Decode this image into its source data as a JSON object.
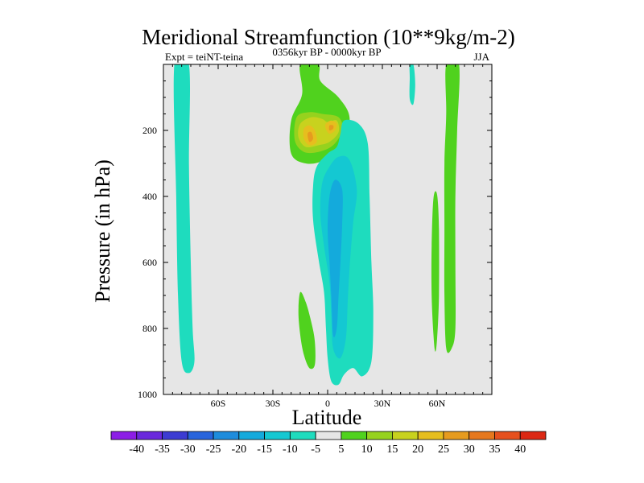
{
  "chart_data": {
    "type": "contour",
    "title": "Meridional Streamfunction (10**9kg/m-2)",
    "subtitle": "0356kyr BP - 0000kyr BP",
    "left_label": "Expt = teiNT-teina",
    "right_label": "JJA",
    "xlabel": "Latitude",
    "ylabel": "Pressure (in hPa)",
    "xlim": [
      -90,
      90
    ],
    "ylim": [
      1000,
      0
    ],
    "x_ticks": [
      {
        "value": -60,
        "label": "60S"
      },
      {
        "value": -30,
        "label": "30S"
      },
      {
        "value": 0,
        "label": "0"
      },
      {
        "value": 30,
        "label": "30N"
      },
      {
        "value": 60,
        "label": "60N"
      }
    ],
    "y_ticks": [
      {
        "value": 200,
        "label": "200"
      },
      {
        "value": 400,
        "label": "400"
      },
      {
        "value": 600,
        "label": "600"
      },
      {
        "value": 800,
        "label": "800"
      },
      {
        "value": 1000,
        "label": "1000"
      }
    ],
    "background_color": "#e6e6e6",
    "colorbar": {
      "boundaries": [
        "-40",
        "-35",
        "-30",
        "-25",
        "-20",
        "-15",
        "-10",
        "-5",
        "5",
        "10",
        "15",
        "20",
        "25",
        "30",
        "35",
        "40"
      ],
      "colors": [
        "#8c1ee6",
        "#6a28dc",
        "#3c3cd2",
        "#2864dc",
        "#1e8cdc",
        "#14aadc",
        "#14c8d2",
        "#1edcbe",
        "#e6e6e6",
        "#50d21e",
        "#96d21e",
        "#c8d21e",
        "#e6be1e",
        "#e69b1e",
        "#e6781e",
        "#e6501e",
        "#dc2814"
      ]
    },
    "contour_regions": [
      {
        "level": "-10 to -5",
        "color": "#1edcbe",
        "outline_latlev": [
          [
            -84,
            0
          ],
          [
            -76,
            0
          ],
          [
            -76,
            300
          ],
          [
            -75,
            600
          ],
          [
            -74,
            800
          ],
          [
            -73,
            900
          ],
          [
            -76,
            935
          ],
          [
            -80,
            900
          ],
          [
            -82,
            700
          ],
          [
            -83,
            400
          ]
        ]
      },
      {
        "level": "5 to 10",
        "color": "#50d21e",
        "outline_latlev": [
          [
            -15,
            0
          ],
          [
            -5,
            0
          ],
          [
            -4,
            50
          ],
          [
            6,
            100
          ],
          [
            12,
            160
          ],
          [
            9,
            240
          ],
          [
            -2,
            290
          ],
          [
            -12,
            300
          ],
          [
            -20,
            270
          ],
          [
            -20,
            170
          ],
          [
            -14,
            90
          ]
        ]
      },
      {
        "level": "10 to 15",
        "color": "#96d21e",
        "outline_latlev": [
          [
            -17,
            160
          ],
          [
            -10,
            145
          ],
          [
            -3,
            150
          ],
          [
            6,
            160
          ],
          [
            8,
            200
          ],
          [
            3,
            245
          ],
          [
            -5,
            265
          ],
          [
            -13,
            265
          ],
          [
            -18,
            230
          ]
        ]
      },
      {
        "level": "15 to 20",
        "color": "#c8d21e",
        "outline_latlev": [
          [
            -15,
            180
          ],
          [
            -9,
            160
          ],
          [
            -3,
            165
          ],
          [
            0,
            175
          ],
          [
            5,
            170
          ],
          [
            6,
            205
          ],
          [
            1,
            235
          ],
          [
            -5,
            245
          ],
          [
            -12,
            250
          ],
          [
            -16,
            220
          ]
        ]
      },
      {
        "level": "20 to 25",
        "color": "#e6be1e",
        "outline_latlev": [
          [
            -13,
            195
          ],
          [
            -10,
            185
          ],
          [
            -7,
            200
          ],
          [
            -6,
            235
          ],
          [
            -10,
            245
          ],
          [
            -13,
            225
          ]
        ]
      },
      {
        "level": "20 to 25",
        "color": "#e6be1e",
        "outline_latlev": [
          [
            -1,
            180
          ],
          [
            2,
            170
          ],
          [
            5,
            180
          ],
          [
            4,
            200
          ],
          [
            1,
            210
          ],
          [
            -1,
            195
          ]
        ]
      },
      {
        "level": "25 to 30",
        "color": "#e69b1e",
        "outline_latlev": [
          [
            -11,
            210
          ],
          [
            -9,
            205
          ],
          [
            -8,
            225
          ],
          [
            -10,
            235
          ]
        ]
      },
      {
        "level": "25 to 30",
        "color": "#e69b1e",
        "outline_latlev": [
          [
            1,
            185
          ],
          [
            3,
            185
          ],
          [
            3,
            195
          ],
          [
            1,
            200
          ]
        ]
      },
      {
        "level": "-10 to -5",
        "color": "#1edcbe",
        "outline_latlev": [
          [
            9,
            170
          ],
          [
            17,
            180
          ],
          [
            22,
            240
          ],
          [
            23,
            400
          ],
          [
            24,
            600
          ],
          [
            25,
            750
          ],
          [
            24,
            900
          ],
          [
            19,
            945
          ],
          [
            14,
            920
          ],
          [
            9,
            940
          ],
          [
            6,
            970
          ],
          [
            2,
            960
          ],
          [
            0,
            890
          ],
          [
            -1,
            790
          ],
          [
            -2,
            690
          ],
          [
            -5,
            590
          ],
          [
            -8,
            470
          ],
          [
            -8,
            370
          ],
          [
            -6,
            310
          ],
          [
            0,
            270
          ],
          [
            5,
            250
          ],
          [
            7,
            210
          ]
        ]
      },
      {
        "level": "-15 to -10",
        "color": "#14c8d2",
        "outline_latlev": [
          [
            6,
            280
          ],
          [
            12,
            290
          ],
          [
            16,
            380
          ],
          [
            14,
            480
          ],
          [
            12,
            620
          ],
          [
            11,
            720
          ],
          [
            10,
            830
          ],
          [
            7,
            890
          ],
          [
            3,
            860
          ],
          [
            2,
            760
          ],
          [
            1,
            660
          ],
          [
            -2,
            550
          ],
          [
            -4,
            450
          ],
          [
            -3,
            360
          ],
          [
            1,
            310
          ]
        ]
      },
      {
        "level": "-20 to -15",
        "color": "#14aadc",
        "outline_latlev": [
          [
            4,
            350
          ],
          [
            8,
            380
          ],
          [
            8,
            480
          ],
          [
            7,
            600
          ],
          [
            6,
            700
          ],
          [
            5,
            800
          ],
          [
            3,
            820
          ],
          [
            2,
            700
          ],
          [
            1,
            600
          ],
          [
            0,
            500
          ],
          [
            1,
            400
          ]
        ]
      },
      {
        "level": "5 to 10",
        "color": "#50d21e",
        "outline_latlev": [
          [
            -15,
            690
          ],
          [
            -12,
            720
          ],
          [
            -9,
            780
          ],
          [
            -7,
            840
          ],
          [
            -7,
            910
          ],
          [
            -10,
            920
          ],
          [
            -13,
            880
          ],
          [
            -15,
            820
          ],
          [
            -16,
            750
          ]
        ]
      },
      {
        "level": "-10 to -5",
        "color": "#1edcbe",
        "outline_latlev": [
          [
            45,
            0
          ],
          [
            47,
            0
          ],
          [
            48,
            60
          ],
          [
            47,
            120
          ],
          [
            45,
            105
          ],
          [
            45,
            40
          ]
        ]
      },
      {
        "level": "5 to 10",
        "color": "#50d21e",
        "outline_latlev": [
          [
            65,
            0
          ],
          [
            72,
            0
          ],
          [
            71,
            200
          ],
          [
            70,
            400
          ],
          [
            70,
            600
          ],
          [
            70,
            800
          ],
          [
            68,
            860
          ],
          [
            65,
            860
          ],
          [
            64,
            700
          ],
          [
            64,
            500
          ],
          [
            64,
            300
          ],
          [
            65,
            150
          ]
        ]
      },
      {
        "level": "5 to 10",
        "color": "#50d21e",
        "outline_latlev": [
          [
            58,
            405
          ],
          [
            60,
            395
          ],
          [
            61,
            500
          ],
          [
            61,
            700
          ],
          [
            60,
            830
          ],
          [
            59,
            870
          ],
          [
            58,
            820
          ],
          [
            57,
            700
          ],
          [
            57,
            550
          ]
        ]
      }
    ]
  }
}
